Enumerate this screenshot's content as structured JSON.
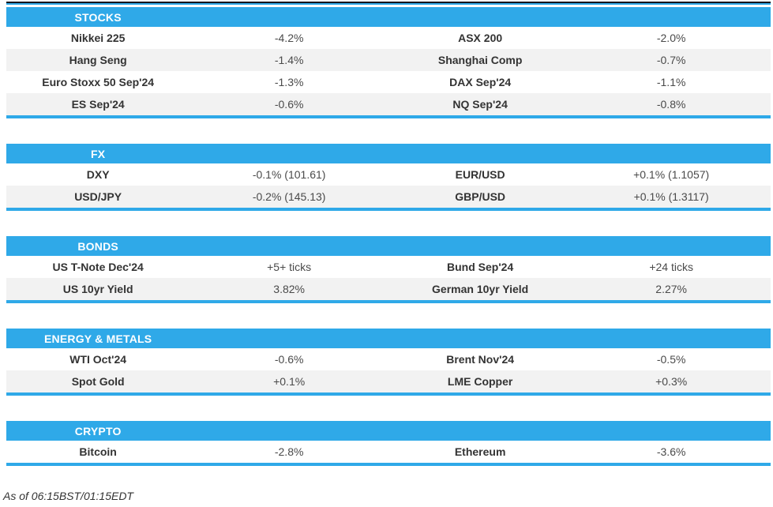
{
  "accent_color": "#2FA9E8",
  "row_alt_color": "#F2F2F2",
  "sections": [
    {
      "title": "STOCKS",
      "rows": [
        {
          "l_name": "Nikkei 225",
          "l_value": "-4.2%",
          "r_name": "ASX 200",
          "r_value": "-2.0%"
        },
        {
          "l_name": "Hang Seng",
          "l_value": "-1.4%",
          "r_name": "Shanghai Comp",
          "r_value": "-0.7%"
        },
        {
          "l_name": "Euro Stoxx 50 Sep'24",
          "l_value": "-1.3%",
          "r_name": "DAX Sep'24",
          "r_value": "-1.1%"
        },
        {
          "l_name": "ES Sep'24",
          "l_value": "-0.6%",
          "r_name": "NQ Sep'24",
          "r_value": "-0.8%"
        }
      ]
    },
    {
      "title": "FX",
      "rows": [
        {
          "l_name": "DXY",
          "l_value": "-0.1% (101.61)",
          "r_name": "EUR/USD",
          "r_value": "+0.1% (1.1057)"
        },
        {
          "l_name": "USD/JPY",
          "l_value": "-0.2% (145.13)",
          "r_name": "GBP/USD",
          "r_value": "+0.1% (1.3117)"
        }
      ]
    },
    {
      "title": "BONDS",
      "rows": [
        {
          "l_name": "US T-Note Dec'24",
          "l_value": "+5+ ticks",
          "r_name": "Bund Sep'24",
          "r_value": "+24 ticks"
        },
        {
          "l_name": "US 10yr Yield",
          "l_value": "3.82%",
          "r_name": "German 10yr Yield",
          "r_value": "2.27%"
        }
      ]
    },
    {
      "title": "ENERGY & METALS",
      "rows": [
        {
          "l_name": "WTI Oct'24",
          "l_value": "-0.6%",
          "r_name": "Brent Nov'24",
          "r_value": "-0.5%"
        },
        {
          "l_name": "Spot Gold",
          "l_value": "+0.1%",
          "r_name": "LME Copper",
          "r_value": "+0.3%"
        }
      ]
    },
    {
      "title": "CRYPTO",
      "rows": [
        {
          "l_name": "Bitcoin",
          "l_value": "-2.8%",
          "r_name": "Ethereum",
          "r_value": "-3.6%"
        }
      ]
    }
  ],
  "footer": {
    "as_of": "As of 06:15BST/01:15EDT"
  }
}
